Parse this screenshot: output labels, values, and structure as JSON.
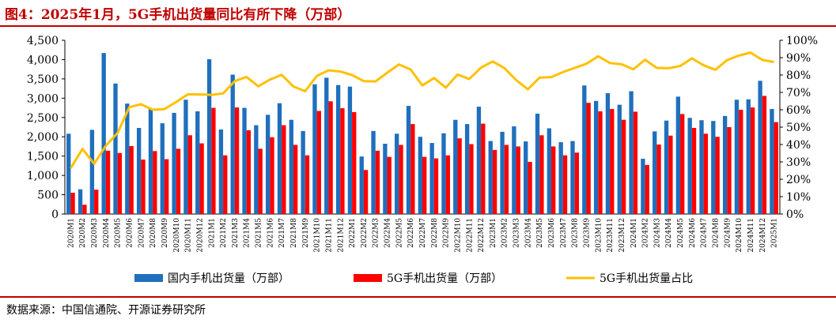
{
  "header": {
    "title": "图4：2025年1月，5G手机出货量同比有所下降（万部）"
  },
  "footer": {
    "source": "数据来源：中国信通院、开源证券研究所"
  },
  "chart_data": {
    "type": "bar",
    "categories": [
      "2020M1",
      "2020M2",
      "2020M3",
      "2020M4",
      "2020M5",
      "2020M6",
      "2020M7",
      "2020M8",
      "2020M9",
      "2020M10",
      "2020M11",
      "2020M12",
      "2021M1",
      "2021M2",
      "2021M3",
      "2021M4",
      "2021M5",
      "2021M6",
      "2021M7",
      "2021M8",
      "2021M9",
      "2021M10",
      "2021M11",
      "2021M12",
      "2022M1",
      "2022M2",
      "2022M3",
      "2022M4",
      "2022M5",
      "2022M6",
      "2022M7",
      "2022M8",
      "2022M9",
      "2022M10",
      "2022M11",
      "2022M12",
      "2023M1",
      "2023M2",
      "2023M3",
      "2023M4",
      "2023M5",
      "2023M6",
      "2023M7",
      "2023M8",
      "2023M9",
      "2023M10",
      "2023M11",
      "2023M12",
      "2024M1",
      "2024M2",
      "2024M3",
      "2024M4",
      "2024M5",
      "2024M6",
      "2024M7",
      "2024M8",
      "2024M9",
      "2024M10",
      "2024M11",
      "2024M12",
      "2025M1"
    ],
    "series": [
      {
        "name": "国内手机出货量（万部）",
        "type": "bar",
        "axis": "left",
        "color": "#1f6fbd",
        "values": [
          2080,
          640,
          2180,
          4170,
          3380,
          2860,
          2230,
          2720,
          2350,
          2620,
          2960,
          2660,
          4010,
          2190,
          3610,
          2750,
          2300,
          2570,
          2870,
          2440,
          2150,
          3360,
          3530,
          3340,
          3300,
          1490,
          2150,
          1820,
          2080,
          2800,
          2000,
          1840,
          2090,
          2440,
          2330,
          2780,
          1890,
          2130,
          2270,
          1880,
          2600,
          2220,
          1860,
          1890,
          3330,
          2930,
          3130,
          2830,
          3180,
          1430,
          2140,
          2420,
          3040,
          2490,
          2430,
          2410,
          2540,
          2960,
          2970,
          3450,
          2720
        ]
      },
      {
        "name": "5G手机出货量（万部）",
        "type": "bar",
        "axis": "left",
        "color": "#ff0000",
        "values": [
          550,
          240,
          630,
          1640,
          1580,
          1760,
          1410,
          1630,
          1420,
          1690,
          2040,
          1830,
          2750,
          1520,
          2760,
          2170,
          1690,
          1990,
          2300,
          1790,
          1520,
          2670,
          2920,
          2740,
          2640,
          1140,
          1640,
          1480,
          1790,
          2330,
          1480,
          1440,
          1520,
          1960,
          1810,
          2340,
          1660,
          1790,
          1750,
          1350,
          2040,
          1750,
          1520,
          1590,
          2880,
          2660,
          2720,
          2440,
          2650,
          1270,
          1800,
          2030,
          2590,
          2230,
          2080,
          2000,
          2250,
          2700,
          2760,
          3060,
          2380
        ]
      },
      {
        "name": "5G手机出货量占比",
        "type": "line",
        "axis": "right",
        "color": "#ffc000",
        "values": [
          26.4,
          37.5,
          28.9,
          39.3,
          46.7,
          61.5,
          63.2,
          60.0,
          60.4,
          64.5,
          68.9,
          68.8,
          68.6,
          69.4,
          76.5,
          78.9,
          73.5,
          77.4,
          80.1,
          73.4,
          70.7,
          79.5,
          82.7,
          82.0,
          80.0,
          76.5,
          76.3,
          81.3,
          86.1,
          83.2,
          74.0,
          78.3,
          72.7,
          80.3,
          77.7,
          84.2,
          87.8,
          84.0,
          77.1,
          71.8,
          78.5,
          78.8,
          81.7,
          84.1,
          86.5,
          90.8,
          86.9,
          86.2,
          83.3,
          88.8,
          84.1,
          83.9,
          85.2,
          89.6,
          85.6,
          83.0,
          88.6,
          91.2,
          92.9,
          88.7,
          87.5
        ]
      }
    ],
    "y_left": {
      "min": 0,
      "max": 4500,
      "ticks": [
        "0",
        "500",
        "1,000",
        "1,500",
        "2,000",
        "2,500",
        "3,000",
        "3,500",
        "4,000",
        "4,500"
      ]
    },
    "y_right": {
      "min": 0,
      "max": 100,
      "ticks": [
        "0%",
        "10%",
        "20%",
        "30%",
        "40%",
        "50%",
        "60%",
        "70%",
        "80%",
        "90%",
        "100%"
      ]
    },
    "legend_position": "bottom",
    "grid": false
  }
}
